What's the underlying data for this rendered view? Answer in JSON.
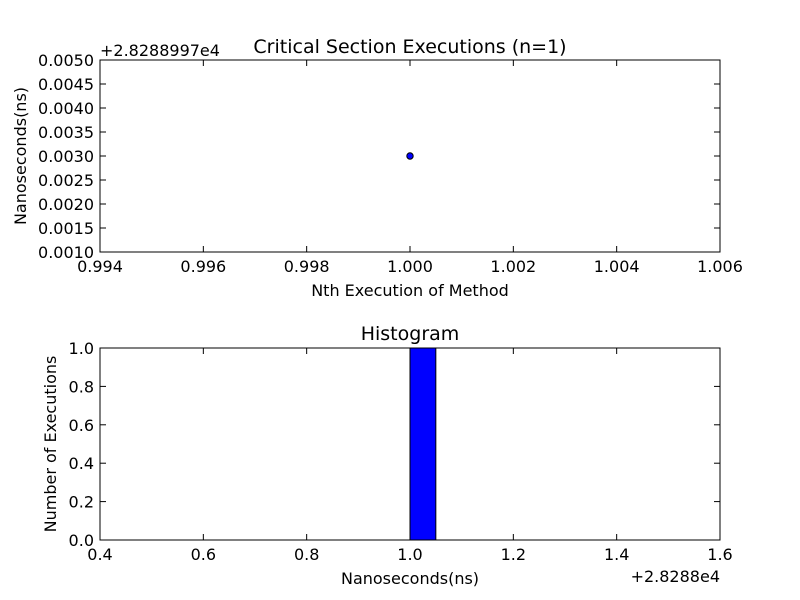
{
  "chart_data": [
    {
      "type": "scatter",
      "title": "Critical Section Executions (n=1)",
      "xlabel": "Nth Execution of Method",
      "ylabel": "Nanoseconds(ns)",
      "offset_label": "+2.8288997e4",
      "xlim": [
        0.994,
        1.006
      ],
      "ylim": [
        0.001,
        0.005
      ],
      "xticks": [
        "0.994",
        "0.996",
        "0.998",
        "1.000",
        "1.002",
        "1.004",
        "1.006"
      ],
      "yticks": [
        "0.0010",
        "0.0015",
        "0.0020",
        "0.0025",
        "0.0030",
        "0.0035",
        "0.0040",
        "0.0045",
        "0.0050"
      ],
      "grid": false,
      "series": [
        {
          "x": [
            1.0
          ],
          "y": [
            0.003
          ]
        }
      ],
      "color": "#0000ff"
    },
    {
      "type": "bar",
      "title": "Histogram",
      "xlabel": "Nanoseconds(ns)",
      "ylabel": "Number of Executions",
      "offset_label": "+2.8288e4",
      "xlim": [
        0.4,
        1.6
      ],
      "ylim": [
        0.0,
        1.0
      ],
      "xticks": [
        "0.4",
        "0.6",
        "0.8",
        "1.0",
        "1.2",
        "1.4",
        "1.6"
      ],
      "yticks": [
        "0.0",
        "0.2",
        "0.4",
        "0.6",
        "0.8",
        "1.0"
      ],
      "grid": false,
      "bin_edges": [
        0.5,
        0.55,
        0.6,
        0.65,
        0.7,
        0.75,
        0.8,
        0.85,
        0.9,
        0.95,
        1.0,
        1.05,
        1.1,
        1.15,
        1.2,
        1.25,
        1.3,
        1.35,
        1.4,
        1.45,
        1.5
      ],
      "counts": [
        0,
        0,
        0,
        0,
        0,
        0,
        0,
        0,
        0,
        0,
        1,
        0,
        0,
        0,
        0,
        0,
        0,
        0,
        0,
        0
      ],
      "color": "#0000ff"
    }
  ]
}
